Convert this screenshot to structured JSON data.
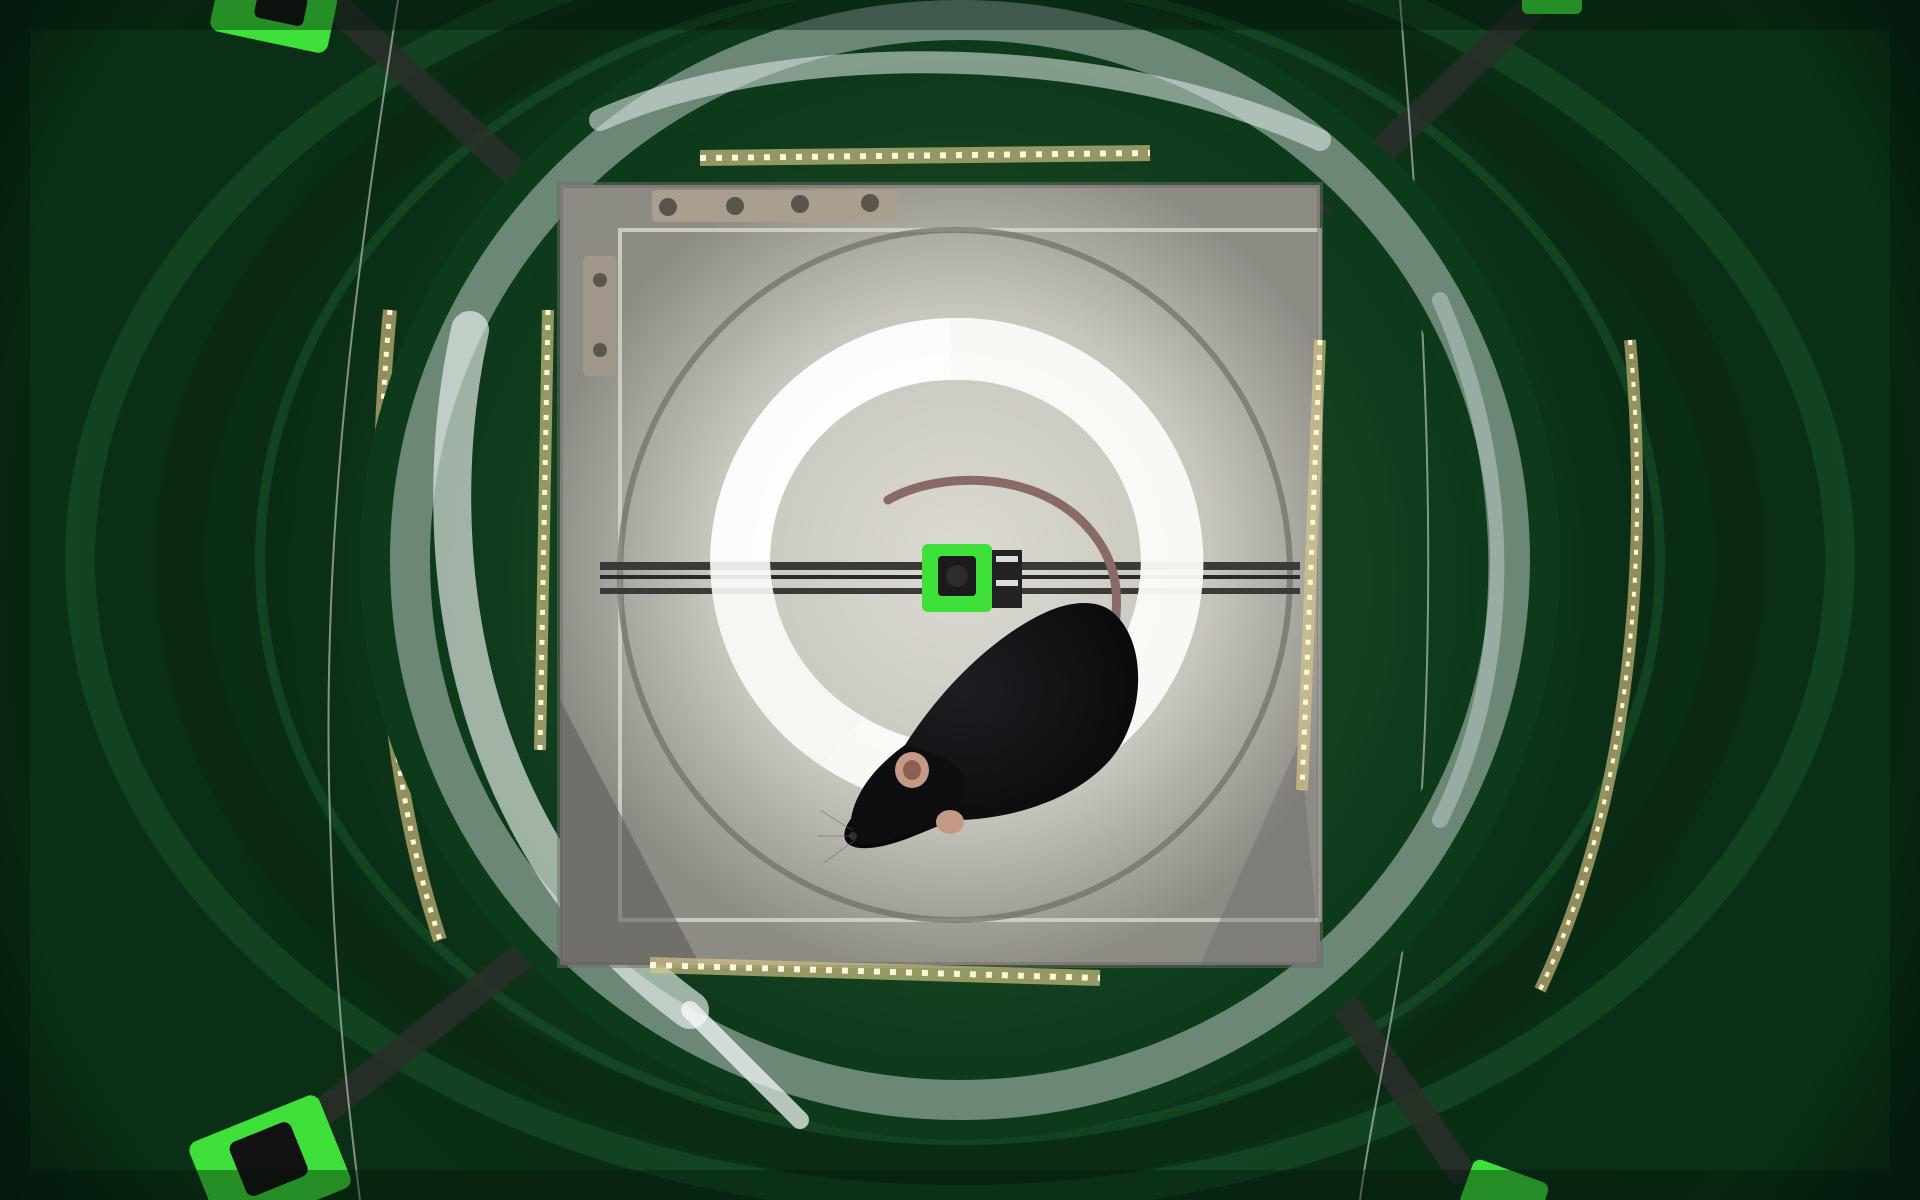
{
  "image": {
    "kind": "photograph",
    "subject": "overhead-view-of-mouse-in-arena",
    "colors": {
      "enclosure_green_dark": "#062010",
      "enclosure_green_mid": "#0d3b1c",
      "enclosure_green_light": "#1d5a2c",
      "ring_glass": "#cfd9d5",
      "led_warm": "#fff2c8",
      "floor_grey": "#bcbcb4",
      "floor_light": "#dedcd4",
      "light_ring_white": "#fbfbf8",
      "mouse_black": "#0b0b0d",
      "mouse_tail": "#8a6a68",
      "mouse_ear": "#c49a86",
      "camera_green": "#3fe03a",
      "camera_lens": "#121212",
      "metal_bracket": "#a89f8e"
    },
    "icons": {
      "mouse": "mouse-icon",
      "camera": "camera-icon",
      "led_strip": "led-strip-icon",
      "light_ring": "light-ring-icon"
    }
  }
}
